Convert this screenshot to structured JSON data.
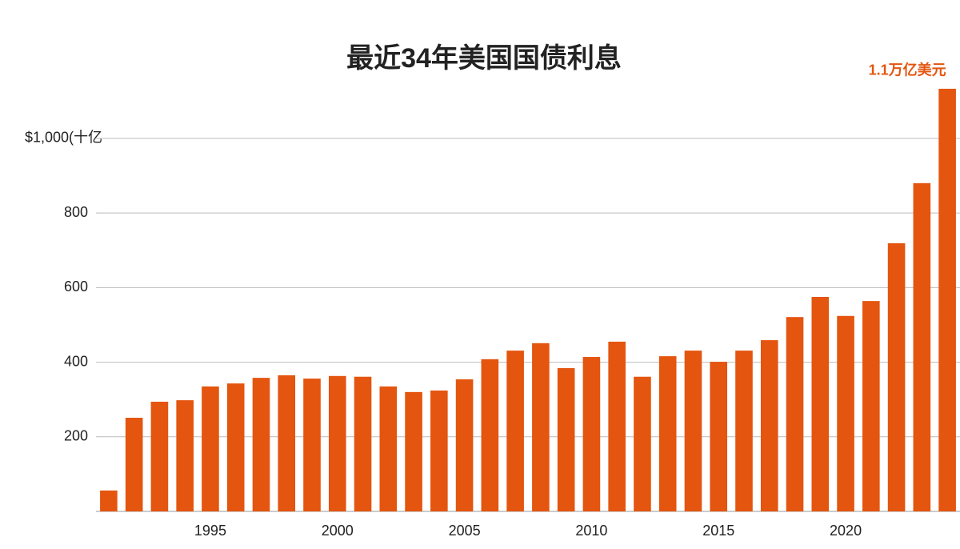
{
  "chart_data": {
    "type": "bar",
    "title": "最近34年美国国债利息",
    "annotation": "1.1万亿美元",
    "x": [
      1991,
      1992,
      1993,
      1994,
      1995,
      1996,
      1997,
      1998,
      1999,
      2000,
      2001,
      2002,
      2003,
      2004,
      2005,
      2006,
      2007,
      2008,
      2009,
      2010,
      2011,
      2012,
      2013,
      2014,
      2015,
      2016,
      2017,
      2018,
      2019,
      2020,
      2021,
      2022,
      2023,
      2024
    ],
    "values": [
      56,
      251,
      294,
      298,
      335,
      343,
      358,
      365,
      356,
      363,
      361,
      335,
      320,
      324,
      354,
      408,
      431,
      451,
      384,
      414,
      455,
      361,
      416,
      431,
      401,
      431,
      459,
      521,
      575,
      524,
      564,
      719,
      880,
      1133
    ],
    "color": "#e4550f",
    "xlim": [
      1990.5,
      2024.5
    ],
    "xticks": [
      1995,
      2000,
      2005,
      2010,
      2015,
      2020
    ],
    "ylim": [
      0,
      1150
    ],
    "yticks": [
      200,
      400,
      600,
      800,
      {
        "value": 1000,
        "label": "$1,000(十亿"
      }
    ],
    "grid": true
  }
}
